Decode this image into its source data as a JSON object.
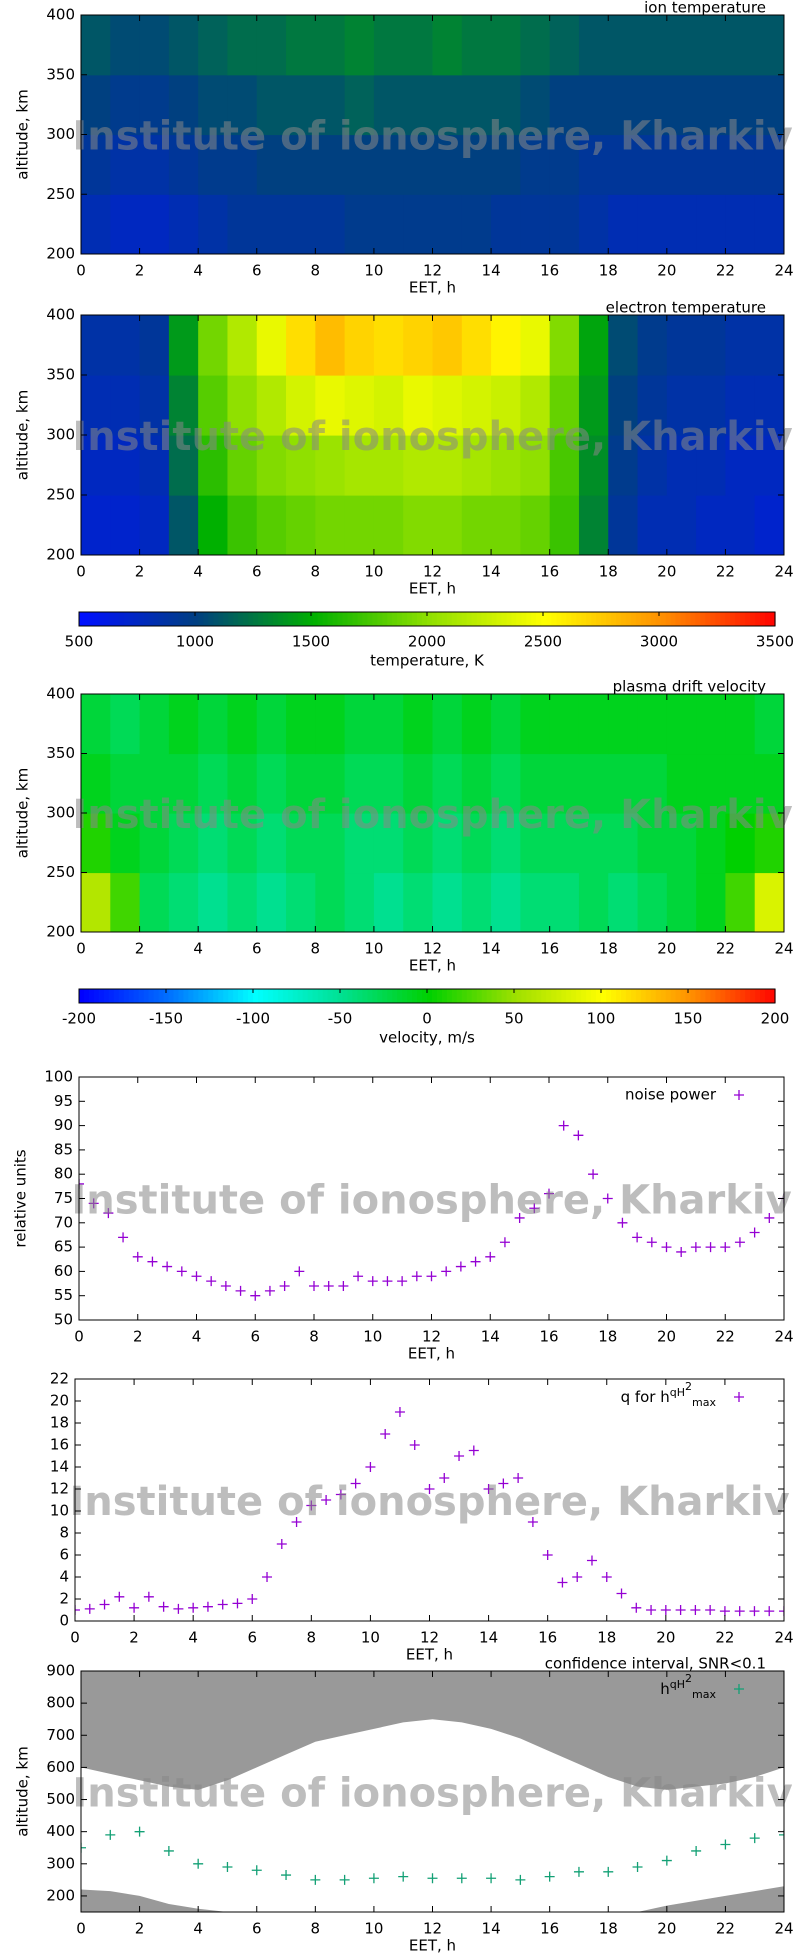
{
  "watermark": "Institute of ionosphere, Kharkiv",
  "chart_data": [
    {
      "type": "heatmap",
      "title": "ion temperature",
      "xlabel": "EET, h",
      "ylabel": "altitude, km",
      "xlim": [
        0,
        24
      ],
      "xticks": [
        0,
        2,
        4,
        6,
        8,
        10,
        12,
        14,
        16,
        18,
        20,
        22,
        24
      ],
      "ylim": [
        200,
        400
      ],
      "yticks": [
        200,
        250,
        300,
        350,
        400
      ],
      "zlim": [
        500,
        3500
      ],
      "colors": [
        "#0010ff",
        "#004080",
        "#00b000",
        "#90e000",
        "#ffff00",
        "#ff9000",
        "#ff0000"
      ],
      "x": [
        0.5,
        1.5,
        2.5,
        3.5,
        4.5,
        5.5,
        6.5,
        7.5,
        8.5,
        9.5,
        10.5,
        11.5,
        12.5,
        13.5,
        14.5,
        15.5,
        16.5,
        17.5,
        18.5,
        19.5,
        20.5,
        21.5,
        22.5,
        23.5
      ],
      "y": [
        225,
        275,
        325,
        375
      ],
      "z": [
        [
          800,
          750,
          750,
          800,
          850,
          900,
          900,
          900,
          900,
          950,
          950,
          950,
          950,
          950,
          900,
          900,
          900,
          850,
          800,
          800,
          800,
          800,
          800,
          800
        ],
        [
          900,
          850,
          850,
          900,
          950,
          950,
          1000,
          1000,
          1000,
          1000,
          1000,
          1000,
          1000,
          1000,
          1000,
          950,
          950,
          900,
          900,
          900,
          900,
          900,
          900,
          900
        ],
        [
          1000,
          950,
          950,
          1000,
          1050,
          1050,
          1100,
          1100,
          1100,
          1150,
          1100,
          1100,
          1100,
          1100,
          1100,
          1050,
          1000,
          1000,
          1000,
          1000,
          1000,
          1000,
          1000,
          1000
        ],
        [
          1100,
          1050,
          1050,
          1100,
          1150,
          1200,
          1200,
          1250,
          1250,
          1300,
          1250,
          1250,
          1300,
          1250,
          1250,
          1200,
          1150,
          1100,
          1100,
          1100,
          1100,
          1100,
          1100,
          1100
        ]
      ]
    },
    {
      "type": "heatmap",
      "title": "electron temperature",
      "xlabel": "EET, h",
      "ylabel": "altitude, km",
      "xlim": [
        0,
        24
      ],
      "xticks": [
        0,
        2,
        4,
        6,
        8,
        10,
        12,
        14,
        16,
        18,
        20,
        22,
        24
      ],
      "ylim": [
        200,
        400
      ],
      "yticks": [
        200,
        250,
        300,
        350,
        400
      ],
      "zlim": [
        500,
        3500
      ],
      "colors": [
        "#0010ff",
        "#004080",
        "#00b000",
        "#90e000",
        "#ffff00",
        "#ff9000",
        "#ff0000"
      ],
      "colorbar": {
        "label": "temperature, K",
        "ticks": [
          500,
          1000,
          1500,
          2000,
          2500,
          3000,
          3500
        ]
      },
      "x": [
        0.5,
        1.5,
        2.5,
        3.5,
        4.5,
        5.5,
        6.5,
        7.5,
        8.5,
        9.5,
        10.5,
        11.5,
        12.5,
        13.5,
        14.5,
        15.5,
        16.5,
        17.5,
        18.5,
        19.5,
        20.5,
        21.5,
        22.5,
        23.5
      ],
      "y": [
        225,
        275,
        325,
        375
      ],
      "z": [
        [
          700,
          700,
          750,
          1100,
          1500,
          1700,
          1800,
          1850,
          1900,
          1900,
          1900,
          1950,
          1950,
          1900,
          1900,
          1850,
          1700,
          1300,
          900,
          800,
          800,
          750,
          750,
          700
        ],
        [
          750,
          750,
          800,
          1200,
          1650,
          1850,
          1950,
          2000,
          2050,
          2100,
          2100,
          2150,
          2150,
          2100,
          2050,
          2000,
          1750,
          1350,
          950,
          850,
          800,
          800,
          750,
          750
        ],
        [
          800,
          800,
          850,
          1300,
          1800,
          2000,
          2150,
          2300,
          2400,
          2350,
          2300,
          2400,
          2350,
          2300,
          2250,
          2150,
          1850,
          1400,
          1000,
          900,
          850,
          850,
          800,
          800
        ],
        [
          850,
          850,
          900,
          1400,
          1900,
          2150,
          2400,
          2650,
          2800,
          2700,
          2650,
          2700,
          2750,
          2650,
          2550,
          2400,
          1950,
          1450,
          1050,
          950,
          900,
          900,
          850,
          850
        ]
      ]
    },
    {
      "type": "heatmap",
      "title": "plasma drift velocity",
      "xlabel": "EET, h",
      "ylabel": "altitude, km",
      "xlim": [
        0,
        24
      ],
      "xticks": [
        0,
        2,
        4,
        6,
        8,
        10,
        12,
        14,
        16,
        18,
        20,
        22,
        24
      ],
      "ylim": [
        200,
        400
      ],
      "yticks": [
        200,
        250,
        300,
        350,
        400
      ],
      "zlim": [
        -200,
        200
      ],
      "colors": [
        "#0000ff",
        "#0070ff",
        "#00ffff",
        "#00e090",
        "#00d000",
        "#a0e000",
        "#ffff00",
        "#ff9000",
        "#ff0000"
      ],
      "colorbar": {
        "label": "velocity, m/s",
        "ticks": [
          -200,
          -150,
          -100,
          -50,
          0,
          50,
          100,
          150,
          200
        ]
      },
      "x": [
        0.5,
        1.5,
        2.5,
        3.5,
        4.5,
        5.5,
        6.5,
        7.5,
        8.5,
        9.5,
        10.5,
        11.5,
        12.5,
        13.5,
        14.5,
        15.5,
        16.5,
        17.5,
        18.5,
        19.5,
        20.5,
        21.5,
        22.5,
        23.5
      ],
      "y": [
        225,
        275,
        325,
        375
      ],
      "z": [
        [
          60,
          20,
          -30,
          -40,
          -50,
          -40,
          -50,
          -40,
          -30,
          -40,
          -50,
          -40,
          -50,
          -40,
          -50,
          -40,
          -40,
          -30,
          -40,
          -30,
          -20,
          -10,
          20,
          80
        ],
        [
          10,
          -10,
          -20,
          -30,
          -40,
          -30,
          -40,
          -30,
          -30,
          -40,
          -40,
          -30,
          -40,
          -30,
          -40,
          -30,
          -30,
          -30,
          -30,
          -20,
          -20,
          -10,
          0,
          10
        ],
        [
          -10,
          -20,
          -20,
          -20,
          -30,
          -20,
          -30,
          -20,
          -20,
          -30,
          -30,
          -20,
          -30,
          -20,
          -30,
          -20,
          -20,
          -20,
          -20,
          -20,
          -10,
          -10,
          -10,
          -10
        ],
        [
          -20,
          -30,
          -20,
          -10,
          -20,
          -10,
          -20,
          -10,
          -10,
          -20,
          -20,
          -10,
          -20,
          -10,
          -20,
          -10,
          -10,
          -10,
          -10,
          -10,
          -10,
          -10,
          -10,
          -20
        ]
      ]
    },
    {
      "type": "scatter",
      "xlabel": "EET, h",
      "ylabel": "relative units",
      "xlim": [
        0,
        24
      ],
      "xticks": [
        0,
        2,
        4,
        6,
        8,
        10,
        12,
        14,
        16,
        18,
        20,
        22,
        24
      ],
      "ylim": [
        50,
        100
      ],
      "yticks": [
        50,
        55,
        60,
        65,
        70,
        75,
        80,
        85,
        90,
        95,
        100
      ],
      "x": [
        0,
        0.5,
        1,
        1.5,
        2,
        2.5,
        3,
        3.5,
        4,
        4.5,
        5,
        5.5,
        6,
        6.5,
        7,
        7.5,
        8,
        8.5,
        9,
        9.5,
        10,
        10.5,
        11,
        11.5,
        12,
        12.5,
        13,
        13.5,
        14,
        14.5,
        15,
        15.5,
        16,
        16.5,
        17,
        17.5,
        18,
        18.5,
        19,
        19.5,
        20,
        20.5,
        21,
        21.5,
        22,
        22.5,
        23,
        23.5,
        24
      ],
      "series": [
        {
          "name": "noise power",
          "color": "#9400d3",
          "values": [
            78,
            74,
            72,
            67,
            63,
            62,
            61,
            60,
            59,
            58,
            57,
            56,
            55,
            56,
            57,
            60,
            57,
            57,
            57,
            59,
            58,
            58,
            58,
            59,
            59,
            60,
            61,
            62,
            63,
            66,
            71,
            73,
            76,
            90,
            88,
            80,
            75,
            70,
            67,
            66,
            65,
            64,
            65,
            65,
            65,
            66,
            68,
            71,
            75
          ]
        }
      ]
    },
    {
      "type": "scatter",
      "xlabel": "EET, h",
      "xlim": [
        0,
        24
      ],
      "xticks": [
        0,
        2,
        4,
        6,
        8,
        10,
        12,
        14,
        16,
        18,
        20,
        22,
        24
      ],
      "ylim": [
        0,
        22
      ],
      "yticks": [
        0,
        2,
        4,
        6,
        8,
        10,
        12,
        14,
        16,
        18,
        20,
        22
      ],
      "x": [
        0,
        0.5,
        1,
        1.5,
        2,
        2.5,
        3,
        3.5,
        4,
        4.5,
        5,
        5.5,
        6,
        6.5,
        7,
        7.5,
        8,
        8.5,
        9,
        9.5,
        10,
        10.5,
        11,
        11.5,
        12,
        12.5,
        13,
        13.5,
        14,
        14.5,
        15,
        15.5,
        16,
        16.5,
        17,
        17.5,
        18,
        18.5,
        19,
        19.5,
        20,
        20.5,
        21,
        21.5,
        22,
        22.5,
        23,
        23.5,
        24
      ],
      "series": [
        {
          "label_parts": [
            "q for h",
            "qH",
            "2",
            "max"
          ],
          "color": "#9400d3",
          "values": [
            1,
            1.1,
            1.5,
            2.2,
            1.2,
            2.2,
            1.3,
            1.1,
            1.2,
            1.3,
            1.5,
            1.6,
            2,
            4,
            7,
            9,
            10.5,
            11,
            11.5,
            12.5,
            14,
            17,
            19,
            16,
            12,
            13,
            15,
            15.5,
            12,
            12.5,
            13,
            9,
            6,
            3.5,
            4,
            5.5,
            4,
            2.5,
            1.2,
            1,
            1,
            1,
            1,
            1,
            0.9,
            0.9,
            0.9,
            0.9,
            0.9
          ]
        }
      ]
    },
    {
      "type": "scatter",
      "title": "confidence interval, SNR<0.1",
      "xlabel": "EET, h",
      "ylabel": "altitude, km",
      "xlim": [
        0,
        24
      ],
      "xticks": [
        0,
        2,
        4,
        6,
        8,
        10,
        12,
        14,
        16,
        18,
        20,
        22,
        24
      ],
      "ylim": [
        150,
        900
      ],
      "yticks": [
        200,
        300,
        400,
        500,
        600,
        700,
        800,
        900
      ],
      "x": [
        0,
        1,
        2,
        3,
        4,
        5,
        6,
        7,
        8,
        9,
        10,
        11,
        12,
        13,
        14,
        15,
        16,
        17,
        18,
        19,
        20,
        21,
        22,
        23,
        24
      ],
      "series": [
        {
          "color": "#999999",
          "fill_to": "top",
          "values": [
            600,
            580,
            560,
            540,
            530,
            560,
            600,
            640,
            680,
            700,
            720,
            740,
            750,
            740,
            720,
            690,
            650,
            610,
            570,
            540,
            530,
            540,
            550,
            570,
            600
          ]
        },
        {
          "color": "#999999",
          "fill_to": "bottom",
          "values": [
            220,
            215,
            200,
            175,
            160,
            150,
            150,
            150,
            150,
            150,
            150,
            150,
            150,
            150,
            150,
            150,
            150,
            150,
            150,
            150,
            170,
            185,
            200,
            215,
            230
          ]
        },
        {
          "label_parts": [
            "h",
            "qH",
            "2",
            "max"
          ],
          "color": "#13a075",
          "values": [
            350,
            390,
            400,
            340,
            300,
            290,
            280,
            265,
            250,
            250,
            255,
            260,
            255,
            255,
            255,
            250,
            260,
            275,
            275,
            290,
            310,
            340,
            360,
            380,
            390
          ]
        }
      ]
    }
  ]
}
